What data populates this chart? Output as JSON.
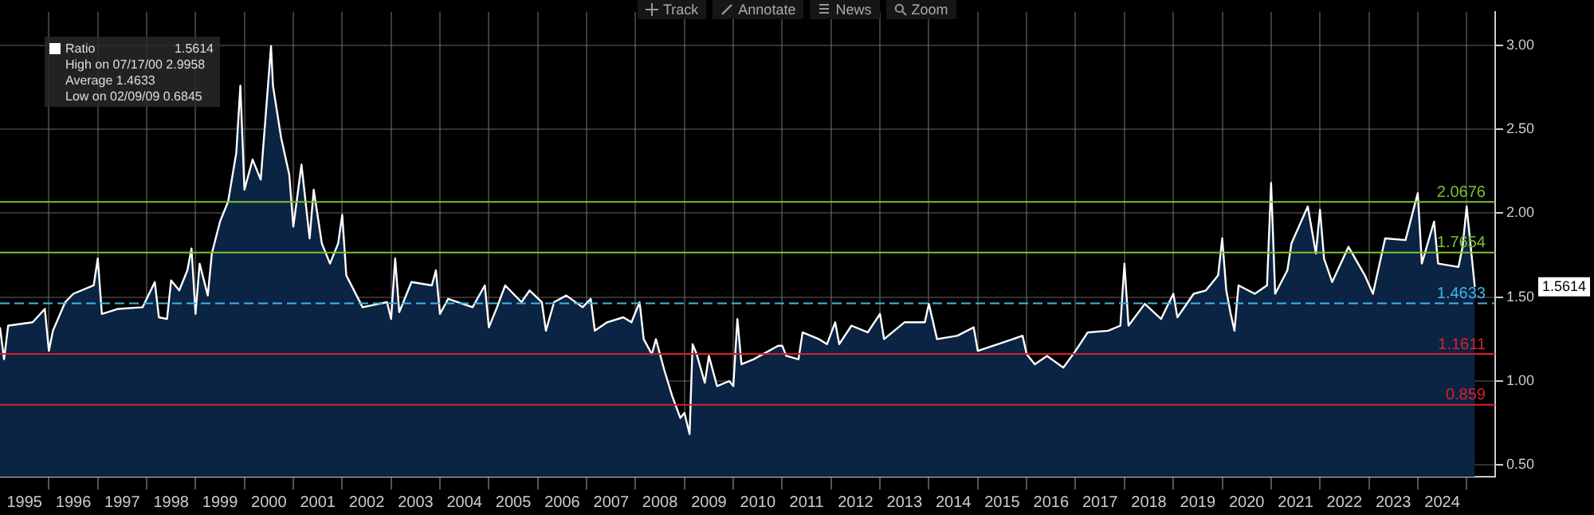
{
  "chart_data": {
    "type": "area",
    "legend": "top left",
    "marker": "none",
    "grid": true,
    "xlim": [
      "1995-01-01",
      "2025-08-01"
    ],
    "xticks": [
      {
        "value": "1995-07-01",
        "label": "1995"
      },
      {
        "value": "1996-01-01",
        "label": null
      },
      {
        "value": "1996-07-01",
        "label": "1996"
      },
      {
        "value": "1997-01-01",
        "label": null
      },
      {
        "value": "1997-07-01",
        "label": "1997"
      },
      {
        "value": "1998-01-01",
        "label": null
      },
      {
        "value": "1998-07-01",
        "label": "1998"
      },
      {
        "value": "1999-01-01",
        "label": null
      },
      {
        "value": "1999-07-01",
        "label": "1999"
      },
      {
        "value": "2000-01-01",
        "label": null
      },
      {
        "value": "2000-07-01",
        "label": "2000"
      },
      {
        "value": "2001-01-01",
        "label": null
      },
      {
        "value": "2001-07-01",
        "label": "2001"
      },
      {
        "value": "2002-01-01",
        "label": null
      },
      {
        "value": "2002-07-01",
        "label": "2002"
      },
      {
        "value": "2003-01-01",
        "label": null
      },
      {
        "value": "2003-07-01",
        "label": "2003"
      },
      {
        "value": "2004-01-01",
        "label": null
      },
      {
        "value": "2004-07-01",
        "label": "2004"
      },
      {
        "value": "2005-01-01",
        "label": null
      },
      {
        "value": "2005-07-01",
        "label": "2005"
      },
      {
        "value": "2006-01-01",
        "label": null
      },
      {
        "value": "2006-07-01",
        "label": "2006"
      },
      {
        "value": "2007-01-01",
        "label": null
      },
      {
        "value": "2007-07-01",
        "label": "2007"
      },
      {
        "value": "2008-01-01",
        "label": null
      },
      {
        "value": "2008-07-01",
        "label": "2008"
      },
      {
        "value": "2009-01-01",
        "label": null
      },
      {
        "value": "2009-07-01",
        "label": "2009"
      },
      {
        "value": "2010-01-01",
        "label": null
      },
      {
        "value": "2010-07-01",
        "label": "2010"
      },
      {
        "value": "2011-01-01",
        "label": null
      },
      {
        "value": "2011-07-01",
        "label": "2011"
      },
      {
        "value": "2012-01-01",
        "label": null
      },
      {
        "value": "2012-07-01",
        "label": "2012"
      },
      {
        "value": "2013-01-01",
        "label": null
      },
      {
        "value": "2013-07-01",
        "label": "2013"
      },
      {
        "value": "2014-01-01",
        "label": null
      },
      {
        "value": "2014-07-01",
        "label": "2014"
      },
      {
        "value": "2015-01-01",
        "label": null
      },
      {
        "value": "2015-07-01",
        "label": "2015"
      },
      {
        "value": "2016-01-01",
        "label": null
      },
      {
        "value": "2016-07-01",
        "label": "2016"
      },
      {
        "value": "2017-01-01",
        "label": null
      },
      {
        "value": "2017-07-01",
        "label": "2017"
      },
      {
        "value": "2018-01-01",
        "label": null
      },
      {
        "value": "2018-07-01",
        "label": "2018"
      },
      {
        "value": "2019-01-01",
        "label": null
      },
      {
        "value": "2019-07-01",
        "label": "2019"
      },
      {
        "value": "2020-01-01",
        "label": null
      },
      {
        "value": "2020-07-01",
        "label": "2020"
      },
      {
        "value": "2021-01-01",
        "label": null
      },
      {
        "value": "2021-07-01",
        "label": "2021"
      },
      {
        "value": "2022-01-01",
        "label": null
      },
      {
        "value": "2022-07-01",
        "label": "2022"
      },
      {
        "value": "2023-01-01",
        "label": null
      },
      {
        "value": "2023-07-01",
        "label": "2023"
      },
      {
        "value": "2024-01-01",
        "label": null
      },
      {
        "value": "2024-07-01",
        "label": "2024"
      },
      {
        "value": "2025-01-01",
        "label": null
      }
    ],
    "ylim": [
      0.43,
      3.2
    ],
    "yticks": [
      {
        "value": 0.5,
        "label": "0.50"
      },
      {
        "value": 1,
        "label": "1.00"
      },
      {
        "value": 1.5,
        "label": "1.50"
      },
      {
        "value": 2,
        "label": "2.00"
      },
      {
        "value": 2.5,
        "label": "2.50"
      },
      {
        "value": 3,
        "label": "3.00"
      }
    ],
    "ref_lines": [
      {
        "axis": "y",
        "value": 2.0676,
        "label": "2.0676",
        "color": "#7cc22e"
      },
      {
        "axis": "y",
        "value": 1.7654,
        "label": "1.7654",
        "color": "#7cc22e"
      },
      {
        "axis": "y",
        "value": 1.4633,
        "label": "1.4633",
        "color": "#3fb6ea",
        "line_style": "dashed"
      },
      {
        "axis": "y",
        "value": 1.1611,
        "label": "1.1611",
        "color": "#d8202c"
      },
      {
        "axis": "y",
        "value": 0.859,
        "label": "0.859",
        "color": "#d8202c"
      }
    ],
    "annotations": [
      "1.5614",
      "High on 07/17/00 2.9958",
      "Average 1.4633",
      "Low on 02/09/09 0.6845",
      "1.5614",
      "Track",
      "Annotate",
      "News",
      "Zoom"
    ],
    "series": [
      {
        "name": "Ratio",
        "color": "#0c2443",
        "x": [
          "1995-01-01",
          "1995-02-01",
          "1995-03-01",
          "1995-09-01",
          "1995-12-01",
          "1996-01-01",
          "1996-02-01",
          "1996-05-01",
          "1996-07-01",
          "1996-12-01",
          "1997-01-01",
          "1997-02-01",
          "1997-06-01",
          "1997-12-01",
          "1998-03-01",
          "1998-04-01",
          "1998-06-01",
          "1998-07-01",
          "1998-09-01",
          "1998-11-01",
          "1998-12-01",
          "1999-01-01",
          "1999-02-01",
          "1999-04-01",
          "1999-05-01",
          "1999-07-01",
          "1999-09-01",
          "1999-11-01",
          "1999-12-01",
          "2000-01-01",
          "2000-03-01",
          "2000-05-01",
          "2000-07-17",
          "2000-08-01",
          "2000-10-01",
          "2000-12-01",
          "2001-01-01",
          "2001-03-01",
          "2001-05-01",
          "2001-06-01",
          "2001-08-01",
          "2001-10-01",
          "2001-12-01",
          "2002-01-01",
          "2002-02-01",
          "2002-06-01",
          "2002-12-01",
          "2003-01-01",
          "2003-02-01",
          "2003-03-01",
          "2003-06-01",
          "2003-11-01",
          "2003-12-01",
          "2004-01-01",
          "2004-03-01",
          "2004-09-01",
          "2004-12-01",
          "2005-01-01",
          "2005-03-01",
          "2005-05-01",
          "2005-09-01",
          "2005-11-01",
          "2006-02-01",
          "2006-03-01",
          "2006-05-01",
          "2006-08-01",
          "2006-12-01",
          "2007-02-01",
          "2007-03-01",
          "2007-06-01",
          "2007-10-01",
          "2007-12-01",
          "2008-02-01",
          "2008-03-01",
          "2008-05-01",
          "2008-06-01",
          "2008-08-01",
          "2008-10-01",
          "2008-12-01",
          "2009-01-01",
          "2009-02-09",
          "2009-03-01",
          "2009-04-01",
          "2009-06-01",
          "2009-07-01",
          "2009-09-01",
          "2009-12-01",
          "2010-01-01",
          "2010-02-01",
          "2010-03-01",
          "2010-06-01",
          "2010-12-01",
          "2011-01-01",
          "2011-02-01",
          "2011-05-01",
          "2011-06-01",
          "2011-10-01",
          "2011-12-01",
          "2012-02-01",
          "2012-03-01",
          "2012-06-01",
          "2012-10-01",
          "2013-01-01",
          "2013-02-01",
          "2013-07-01",
          "2013-12-01",
          "2014-01-01",
          "2014-03-01",
          "2014-08-01",
          "2014-12-01",
          "2015-01-01",
          "2015-06-01",
          "2015-12-01",
          "2016-01-01",
          "2016-03-01",
          "2016-06-01",
          "2016-10-01",
          "2017-01-01",
          "2017-04-01",
          "2017-09-01",
          "2017-12-01",
          "2018-01-01",
          "2018-02-01",
          "2018-06-01",
          "2018-10-01",
          "2019-01-01",
          "2019-02-01",
          "2019-06-01",
          "2019-09-01",
          "2019-12-01",
          "2020-01-01",
          "2020-02-01",
          "2020-03-01",
          "2020-04-01",
          "2020-05-01",
          "2020-09-01",
          "2020-12-01",
          "2021-01-01",
          "2021-02-01",
          "2021-05-01",
          "2021-06-01",
          "2021-10-01",
          "2021-12-01",
          "2022-01-01",
          "2022-02-01",
          "2022-04-01",
          "2022-08-01",
          "2022-12-01",
          "2023-02-01",
          "2023-05-01",
          "2023-10-01",
          "2024-01-01",
          "2024-02-01",
          "2024-05-01",
          "2024-06-01",
          "2024-11-01",
          "2024-12-01",
          "2025-01-01",
          "2025-03-01"
        ],
        "values": [
          1.32,
          1.13,
          1.33,
          1.35,
          1.43,
          1.18,
          1.3,
          1.47,
          1.52,
          1.57,
          1.73,
          1.4,
          1.43,
          1.44,
          1.59,
          1.38,
          1.37,
          1.6,
          1.54,
          1.66,
          1.79,
          1.4,
          1.7,
          1.51,
          1.76,
          1.95,
          2.07,
          2.36,
          2.76,
          2.14,
          2.32,
          2.2,
          2.9958,
          2.76,
          2.45,
          2.23,
          1.92,
          2.29,
          1.85,
          2.14,
          1.82,
          1.7,
          1.82,
          1.99,
          1.63,
          1.44,
          1.47,
          1.37,
          1.73,
          1.41,
          1.59,
          1.57,
          1.66,
          1.4,
          1.49,
          1.44,
          1.57,
          1.32,
          1.44,
          1.57,
          1.47,
          1.54,
          1.47,
          1.3,
          1.47,
          1.51,
          1.44,
          1.49,
          1.3,
          1.35,
          1.38,
          1.35,
          1.47,
          1.25,
          1.16,
          1.25,
          1.07,
          0.91,
          0.78,
          0.81,
          0.6845,
          1.22,
          1.16,
          0.99,
          1.15,
          0.97,
          1.0,
          0.97,
          1.37,
          1.1,
          1.13,
          1.21,
          1.21,
          1.15,
          1.13,
          1.29,
          1.25,
          1.22,
          1.35,
          1.22,
          1.33,
          1.29,
          1.4,
          1.25,
          1.35,
          1.35,
          1.46,
          1.25,
          1.27,
          1.32,
          1.18,
          1.22,
          1.27,
          1.16,
          1.1,
          1.15,
          1.08,
          1.18,
          1.29,
          1.3,
          1.33,
          1.7,
          1.33,
          1.46,
          1.37,
          1.52,
          1.38,
          1.52,
          1.54,
          1.63,
          1.85,
          1.54,
          1.41,
          1.3,
          1.57,
          1.52,
          1.57,
          2.18,
          1.52,
          1.66,
          1.82,
          2.04,
          1.76,
          2.02,
          1.73,
          1.59,
          1.8,
          1.63,
          1.52,
          1.85,
          1.84,
          2.12,
          1.7,
          1.95,
          1.7,
          1.68,
          1.8,
          2.04,
          1.5614
        ]
      }
    ]
  }
}
